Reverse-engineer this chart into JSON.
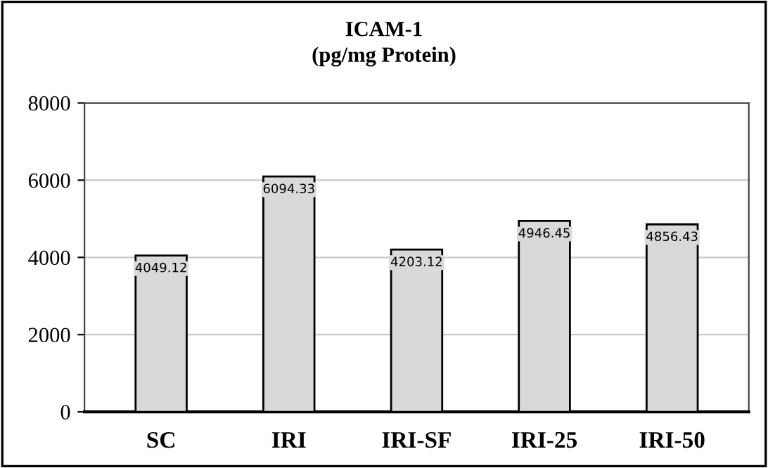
{
  "chart_data": {
    "type": "bar",
    "title": "ICAM-1",
    "subtitle": "(pg/mg Protein)",
    "categories": [
      "SC",
      "IRI",
      "IRI-SF",
      "IRI-25",
      "IRI-50"
    ],
    "values": [
      4049.12,
      6094.33,
      4203.12,
      4946.45,
      4856.43
    ],
    "color": "#d9d9d9",
    "ylim": [
      0,
      8000
    ],
    "yticks": [
      0,
      2000,
      4000,
      6000,
      8000
    ],
    "grid": "y",
    "data_labels": true
  }
}
